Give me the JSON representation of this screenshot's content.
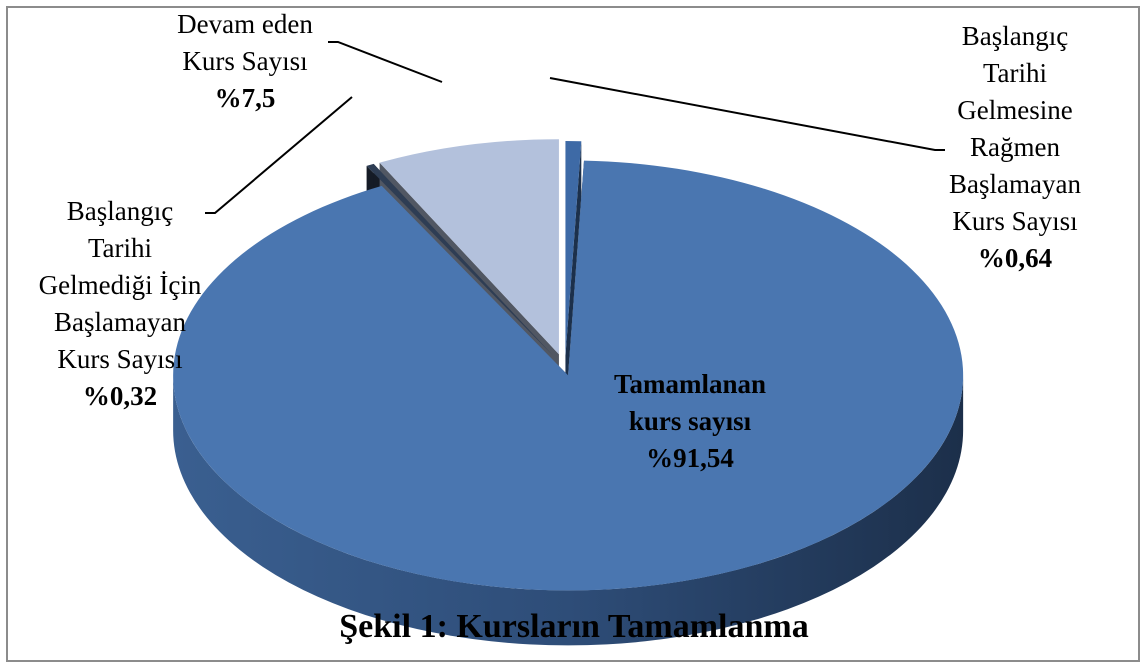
{
  "chart_data": {
    "type": "pie",
    "title": "Şekil 1: Kursların Tamamlanma",
    "categories": [
      "Başlangıç\nTarihi\nGelmesine\nRağmen\nBaşlamayan\nKurs Sayısı",
      "Tamamlanan\nkurs sayısı",
      "Başlangıç\nTarihi\nGelmediği İçin\nBaşlamayan\nKurs Sayısı",
      "Devam eden\nKurs Sayısı"
    ],
    "values": [
      0.64,
      91.54,
      0.32,
      7.5
    ],
    "value_labels": [
      "%0,64",
      "%91,54",
      "%0,32",
      "%7,5"
    ],
    "colors": [
      "#3e6aa6",
      "#4a76b0",
      "#2e3d54",
      "#b3c1dc"
    ]
  }
}
